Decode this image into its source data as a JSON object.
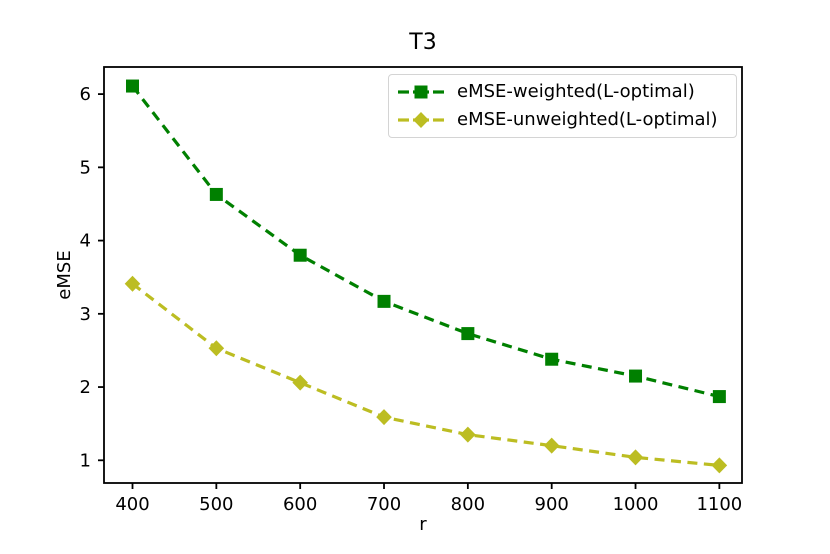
{
  "chart_data": {
    "type": "line",
    "title": "T3",
    "xlabel": "r",
    "ylabel": "eMSE",
    "x": [
      400,
      500,
      600,
      700,
      800,
      900,
      1000,
      1100
    ],
    "series": [
      {
        "name": "eMSE-weighted(L-optimal)",
        "color": "#008000",
        "marker": "square",
        "linestyle": "dashed",
        "values": [
          6.11,
          4.63,
          3.8,
          3.17,
          2.73,
          2.38,
          2.15,
          1.87
        ]
      },
      {
        "name": "eMSE-unweighted(L-optimal)",
        "color": "#bcbd22",
        "marker": "diamond",
        "linestyle": "dashed",
        "values": [
          3.41,
          2.53,
          2.06,
          1.59,
          1.35,
          1.2,
          1.04,
          0.93
        ]
      }
    ],
    "xticks": [
      400,
      500,
      600,
      700,
      800,
      900,
      1000,
      1100
    ],
    "yticks": [
      1,
      2,
      3,
      4,
      5,
      6
    ],
    "xlim": [
      366,
      1127
    ],
    "ylim": [
      0.69,
      6.37
    ],
    "grid": false,
    "legend_position": "upper right"
  }
}
